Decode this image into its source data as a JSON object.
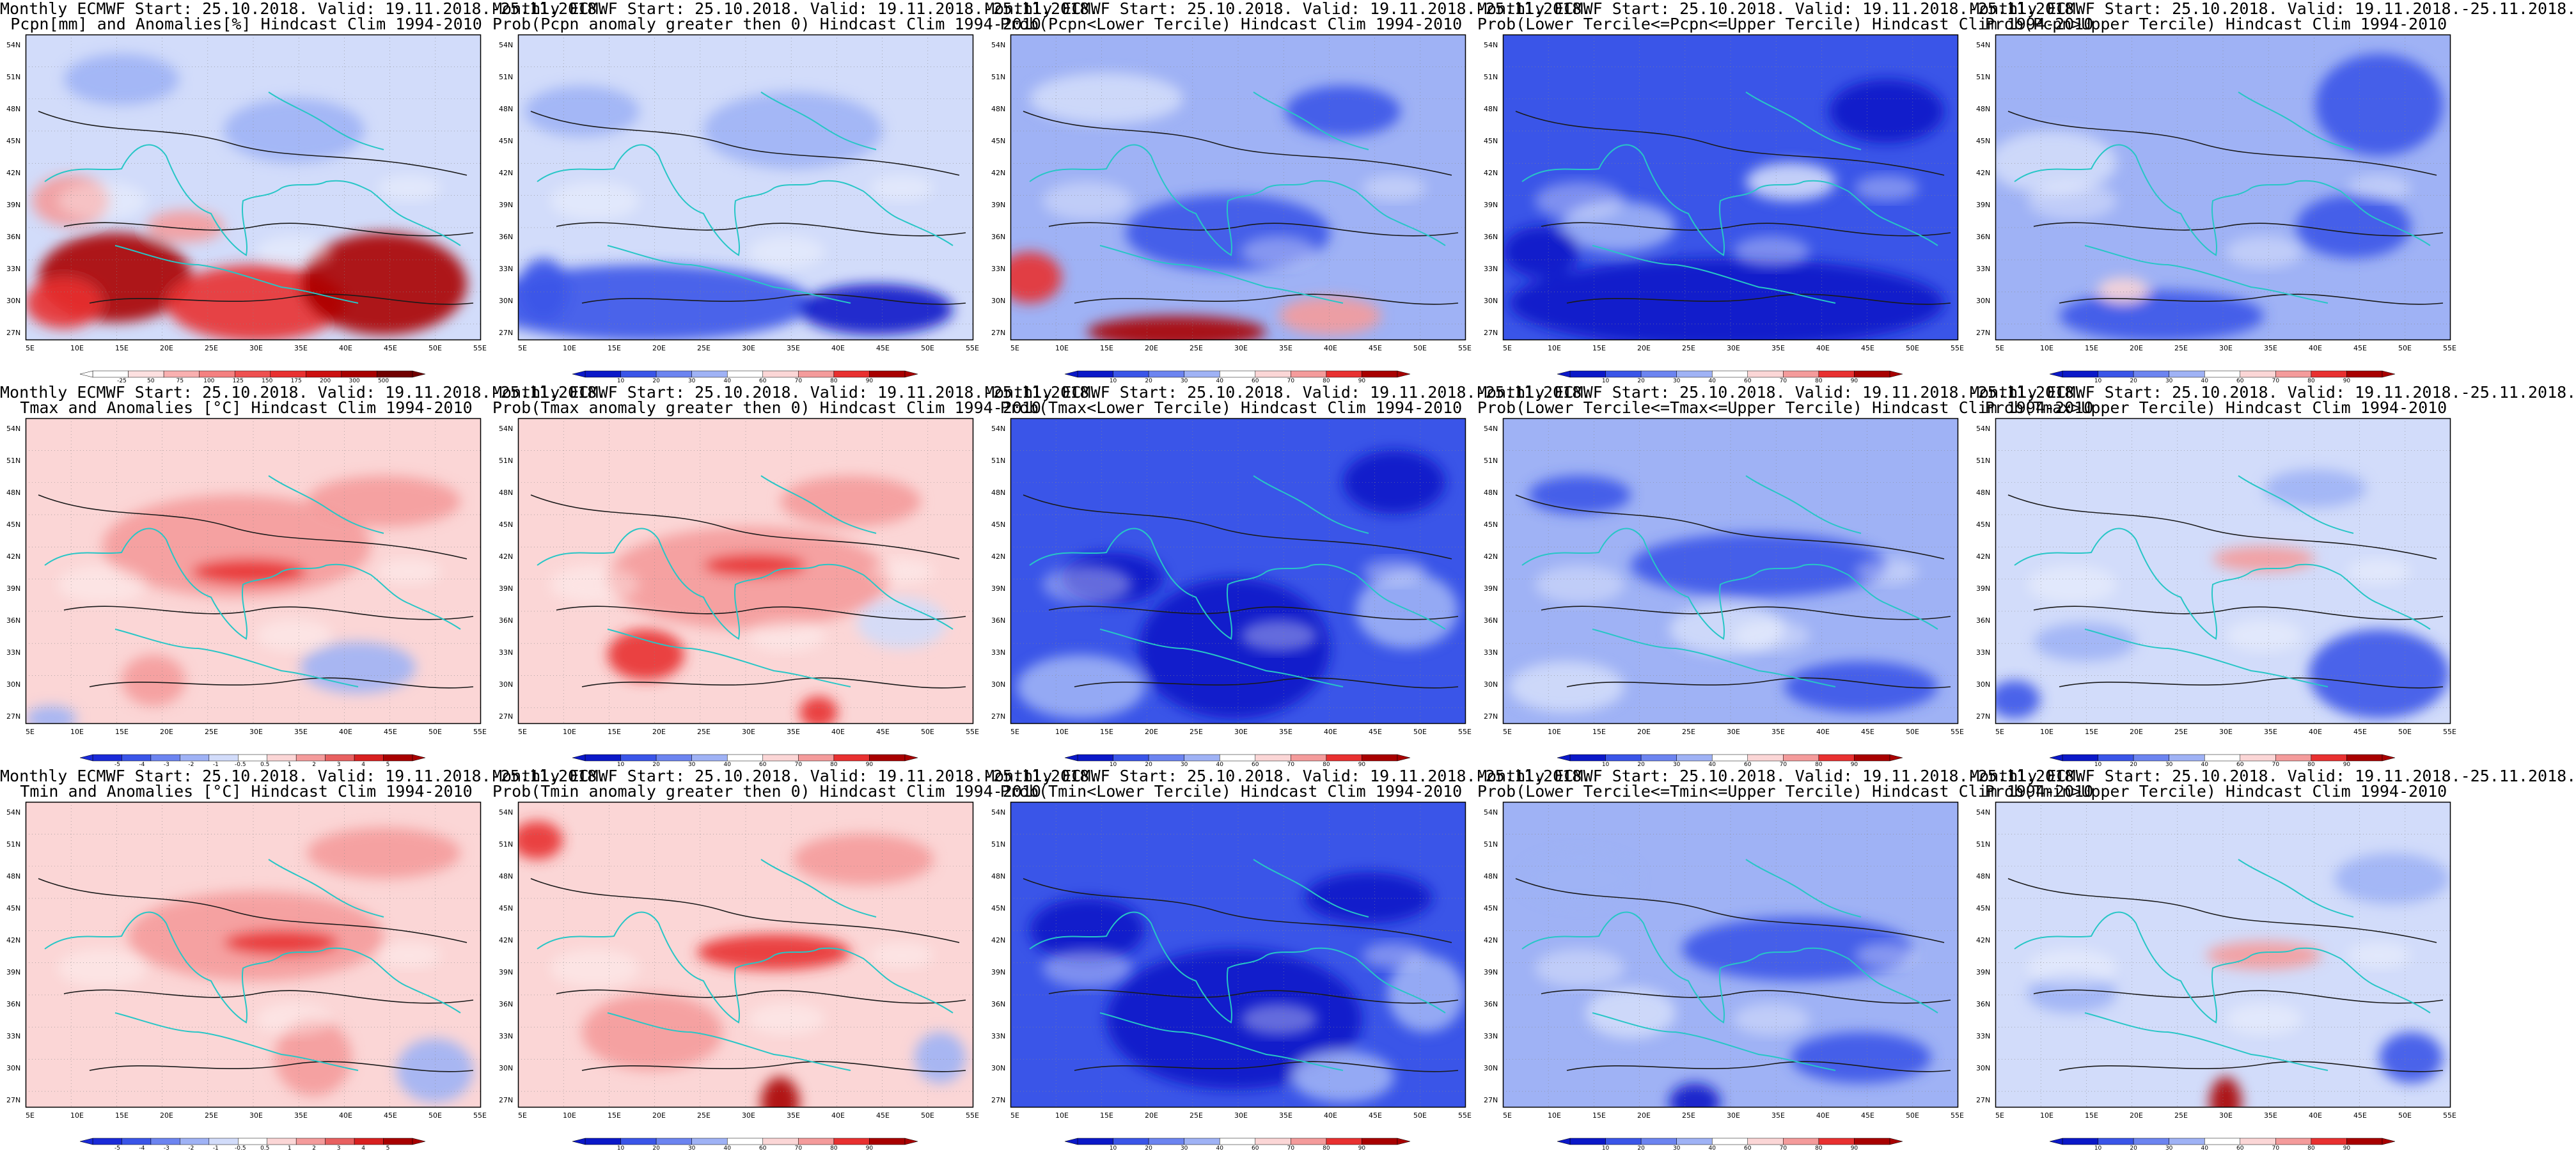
{
  "figure": {
    "title_line1": "Monthly ECMWF Start: 25.10.2018. Valid: 19.11.2018.-25.11.2018.",
    "lat_ticks": [
      "54N",
      "51N",
      "48N",
      "45N",
      "42N",
      "39N",
      "36N",
      "33N",
      "30N",
      "27N"
    ],
    "lon_ticks": [
      "5E",
      "10E",
      "15E",
      "20E",
      "25E",
      "30E",
      "35E",
      "40E",
      "45E",
      "50E",
      "55E"
    ],
    "colors": {
      "sea_line": "#27c6c6",
      "contour": "#1a1a1a",
      "deep_blue": "#0b18c8",
      "mid_blue": "#3a55e8",
      "light_blue": "#9fb2f5",
      "pale_blue": "#d2dcfa",
      "pale_red": "#fbd6d6",
      "light_red": "#f49b9b",
      "mid_red": "#e83030",
      "deep_red": "#a80000"
    },
    "panels": [
      {
        "id": "p1",
        "title_line2": "Pcpn[mm] and Anomalies[%] Hindcast Clim 1994-2010",
        "colorbar_labels": [
          "-25",
          "50",
          "75",
          "100",
          "125",
          "150",
          "175",
          "200",
          "300",
          "500"
        ],
        "base": "pale_blue",
        "theme": "pcpn_anom"
      },
      {
        "id": "p2",
        "title_line2": "Prob(Pcpn anomaly greater then 0) Hindcast Clim 1994-2010",
        "colorbar_labels": [
          "10",
          "20",
          "30",
          "40",
          "60",
          "70",
          "80",
          "90"
        ],
        "base": "pale_blue",
        "theme": "pcpn_pos"
      },
      {
        "id": "p3",
        "title_line2": "Prob(Pcpn<Lower Tercile) Hindcast Clim 1994-2010",
        "colorbar_labels": [
          "10",
          "20",
          "30",
          "40",
          "60",
          "70",
          "80",
          "90"
        ],
        "base": "light_blue",
        "theme": "pcpn_low"
      },
      {
        "id": "p4",
        "title_line2": "Prob(Lower Tercile<=Pcpn<=Upper Tercile) Hindcast Clim 1994-2010",
        "colorbar_labels": [
          "10",
          "20",
          "30",
          "40",
          "60",
          "70",
          "80",
          "90"
        ],
        "base": "mid_blue",
        "theme": "pcpn_mid"
      },
      {
        "id": "p5",
        "title_line2": "Prob(Pcpn>Upper Tercile) Hindcast Clim 1994-2010",
        "colorbar_labels": [
          "10",
          "20",
          "30",
          "40",
          "60",
          "70",
          "80",
          "90"
        ],
        "base": "light_blue",
        "theme": "pcpn_up"
      },
      {
        "id": "p6",
        "title_line2": "Tmax and Anomalies [°C] Hindcast Clim 1994-2010",
        "colorbar_labels": [
          "-5",
          "-4",
          "-3",
          "-2",
          "-1",
          "-0.5",
          "0.5",
          "1",
          "2",
          "3",
          "4",
          "5"
        ],
        "base": "pale_red",
        "theme": "tmax_anom"
      },
      {
        "id": "p7",
        "title_line2": "Prob(Tmax anomaly greater then 0) Hindcast Clim 1994-2010",
        "colorbar_labels": [
          "10",
          "20",
          "30",
          "40",
          "60",
          "70",
          "80",
          "90"
        ],
        "base": "pale_red",
        "theme": "tmax_pos"
      },
      {
        "id": "p8",
        "title_line2": "Prob(Tmax<Lower Tercile) Hindcast Clim 1994-2010",
        "colorbar_labels": [
          "10",
          "20",
          "30",
          "40",
          "60",
          "70",
          "80",
          "90"
        ],
        "base": "mid_blue",
        "theme": "tmax_low"
      },
      {
        "id": "p9",
        "title_line2": "Prob(Lower Tercile<=Tmax<=Upper Tercile) Hindcast Clim 1994-2010",
        "colorbar_labels": [
          "10",
          "20",
          "30",
          "40",
          "60",
          "70",
          "80",
          "90"
        ],
        "base": "light_blue",
        "theme": "tmax_mid"
      },
      {
        "id": "p10",
        "title_line2": "Prob(Tmax>Upper Tercile) Hindcast Clim 1994-2010",
        "colorbar_labels": [
          "10",
          "20",
          "30",
          "40",
          "60",
          "70",
          "80",
          "90"
        ],
        "base": "pale_blue",
        "theme": "tmax_up"
      },
      {
        "id": "p11",
        "title_line2": "Tmin and Anomalies [°C] Hindcast Clim 1994-2010",
        "colorbar_labels": [
          "-5",
          "-4",
          "-3",
          "-2",
          "-1",
          "-0.5",
          "0.5",
          "1",
          "2",
          "3",
          "4",
          "5"
        ],
        "base": "pale_red",
        "theme": "tmin_anom"
      },
      {
        "id": "p12",
        "title_line2": "Prob(Tmin anomaly greater then 0) Hindcast Clim 1994-2010",
        "colorbar_labels": [
          "10",
          "20",
          "30",
          "40",
          "60",
          "70",
          "80",
          "90"
        ],
        "base": "pale_red",
        "theme": "tmin_pos"
      },
      {
        "id": "p13",
        "title_line2": "Prob(Tmin<Lower Tercile) Hindcast Clim 1994-2010",
        "colorbar_labels": [
          "10",
          "20",
          "30",
          "40",
          "60",
          "70",
          "80",
          "90"
        ],
        "base": "mid_blue",
        "theme": "tmin_low"
      },
      {
        "id": "p14",
        "title_line2": "Prob(Lower Tercile<=Tmin<=Upper Tercile) Hindcast Clim 1994-2010",
        "colorbar_labels": [
          "10",
          "20",
          "30",
          "40",
          "60",
          "70",
          "80",
          "90"
        ],
        "base": "light_blue",
        "theme": "tmin_mid"
      },
      {
        "id": "p15",
        "title_line2": "Prob(Tmin>Upper Tercile) Hindcast Clim 1994-2010",
        "colorbar_labels": [
          "10",
          "20",
          "30",
          "40",
          "60",
          "70",
          "80",
          "90"
        ],
        "base": "pale_blue",
        "theme": "tmin_up"
      }
    ]
  }
}
